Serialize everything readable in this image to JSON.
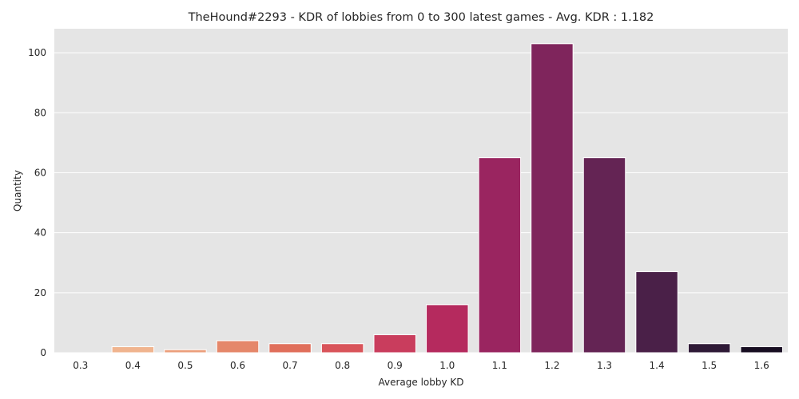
{
  "chart_data": {
    "type": "bar",
    "title": "TheHound#2293 - KDR of lobbies from 0 to 300 latest games - Avg. KDR : 1.182",
    "xlabel": "Average lobby KD",
    "ylabel": "Quantity",
    "categories": [
      "0.3",
      "0.4",
      "0.5",
      "0.6",
      "0.7",
      "0.8",
      "0.9",
      "1.0",
      "1.1",
      "1.2",
      "1.3",
      "1.4",
      "1.5",
      "1.6"
    ],
    "values": [
      0,
      2,
      1,
      4,
      3,
      3,
      6,
      16,
      65,
      103,
      65,
      27,
      3,
      2
    ],
    "colors": [
      "#f6c7a4",
      "#f0b48f",
      "#eb9f7c",
      "#e5876a",
      "#e06f5b",
      "#d9545a",
      "#c93d5d",
      "#b52a5e",
      "#9a2560",
      "#7f255c",
      "#642454",
      "#4a2048",
      "#2f1a37",
      "#180e22"
    ],
    "ylim": [
      0,
      108
    ],
    "yticks": [
      0,
      20,
      40,
      60,
      80,
      100
    ],
    "grid": true,
    "background": "#e5e5e5",
    "grid_color": "#ffffff",
    "text_color": "#262626"
  }
}
